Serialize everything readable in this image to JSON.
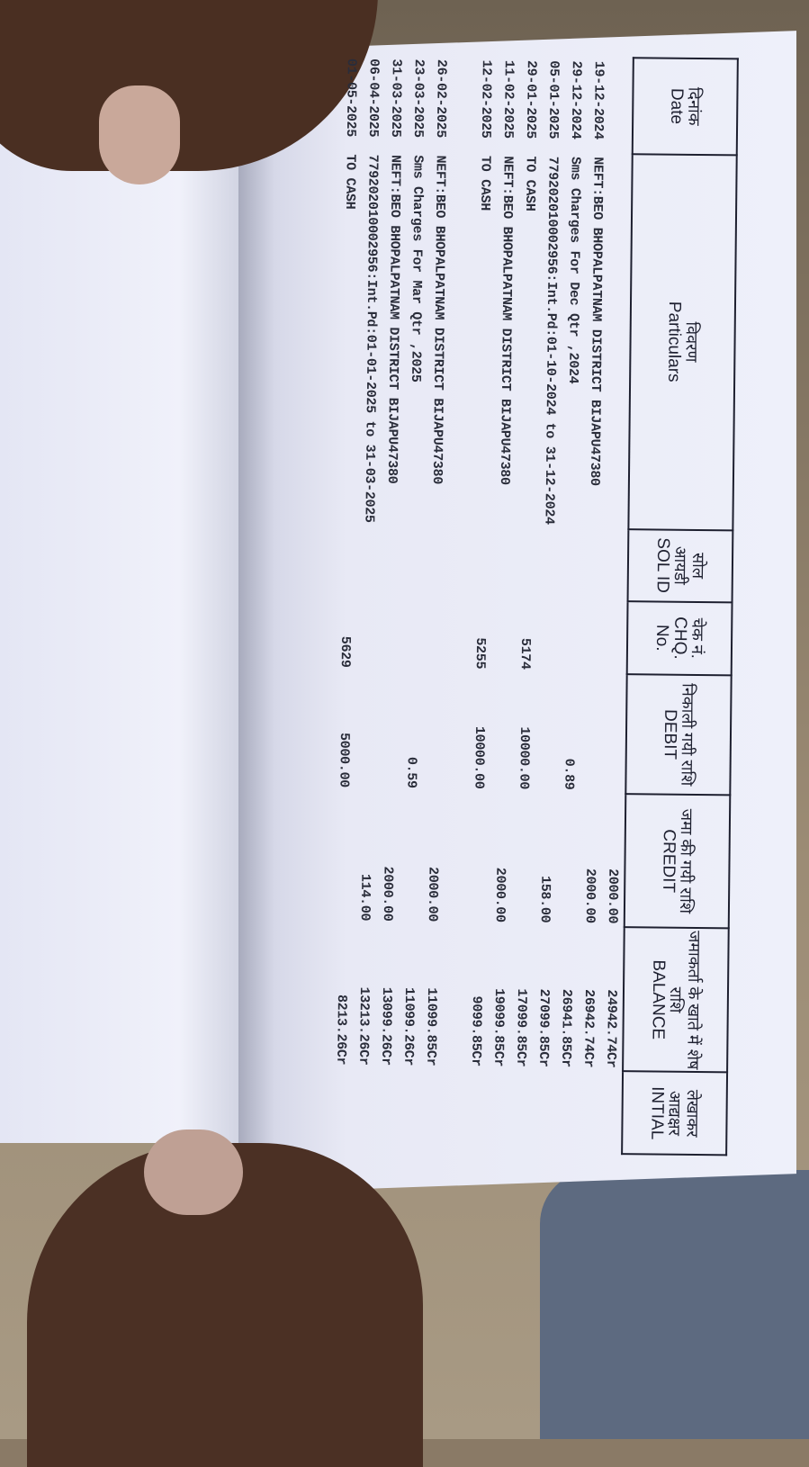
{
  "passbook": {
    "columns": [
      {
        "hindi": "दिनांक",
        "english": "Date"
      },
      {
        "hindi": "विवरण",
        "english": "Particulars"
      },
      {
        "hindi": "सोल आयडी",
        "english": "SOL ID"
      },
      {
        "hindi": "चेक नं.",
        "english": "CHQ. No."
      },
      {
        "hindi": "निकाली गयी राशि",
        "english": "DEBIT"
      },
      {
        "hindi": "जमा की गयी राशि",
        "english": "CREDIT"
      },
      {
        "hindi": "जमाकर्ता के खाते में शेष राशि",
        "english": "BALANCE"
      },
      {
        "hindi": "लेखाकर आद्यक्षर",
        "english": "INTIAL"
      }
    ],
    "rows": [
      {
        "date": "",
        "particulars": "",
        "chq": "",
        "debit": "",
        "credit": "2000.00",
        "balance": "24942.74Cr"
      },
      {
        "date": "19-12-2024",
        "particulars": "NEFT:BEO BHOPALPATNAM DISTRICT BIJAPU47380",
        "chq": "",
        "debit": "",
        "credit": "2000.00",
        "balance": "26942.74Cr"
      },
      {
        "date": "29-12-2024",
        "particulars": "Sms Charges For Dec Qtr ,2024",
        "chq": "",
        "debit": "0.89",
        "credit": "",
        "balance": "26941.85Cr"
      },
      {
        "date": "05-01-2025",
        "particulars": "779202010002956:Int.Pd:01-10-2024 to 31-12-2024",
        "chq": "",
        "debit": "",
        "credit": "158.00",
        "balance": "27099.85Cr"
      },
      {
        "date": "29-01-2025",
        "particulars": "TO CASH",
        "chq": "5174",
        "debit": "10000.00",
        "credit": "",
        "balance": "17099.85Cr"
      },
      {
        "date": "11-02-2025",
        "particulars": "NEFT:BEO BHOPALPATNAM DISTRICT BIJAPU47380",
        "chq": "",
        "debit": "",
        "credit": "2000.00",
        "balance": "19099.85Cr"
      },
      {
        "date": "12-02-2025",
        "particulars": "TO CASH",
        "chq": "5255",
        "debit": "10000.00",
        "credit": "",
        "balance": "9099.85Cr"
      },
      {
        "date": "26-02-2025",
        "particulars": "NEFT:BEO BHOPALPATNAM DISTRICT BIJAPU47380",
        "chq": "",
        "debit": "",
        "credit": "2000.00",
        "balance": "11099.85Cr"
      },
      {
        "date": "23-03-2025",
        "particulars": "Sms Charges For Mar Qtr ,2025",
        "chq": "",
        "debit": "0.59",
        "credit": "",
        "balance": "11099.26Cr"
      },
      {
        "date": "31-03-2025",
        "particulars": "NEFT:BEO BHOPALPATNAM DISTRICT BIJAPU47380",
        "chq": "",
        "debit": "",
        "credit": "2000.00",
        "balance": "13099.26Cr"
      },
      {
        "date": "06-04-2025",
        "particulars": "779202010002956:Int.Pd:01-01-2025 to 31-03-2025",
        "chq": "",
        "debit": "",
        "credit": "114.00",
        "balance": "13213.26Cr"
      },
      {
        "date": "01-05-2025",
        "particulars": "TO CASH",
        "chq": "5629",
        "debit": "5000.00",
        "credit": "",
        "balance": "8213.26Cr"
      }
    ]
  }
}
